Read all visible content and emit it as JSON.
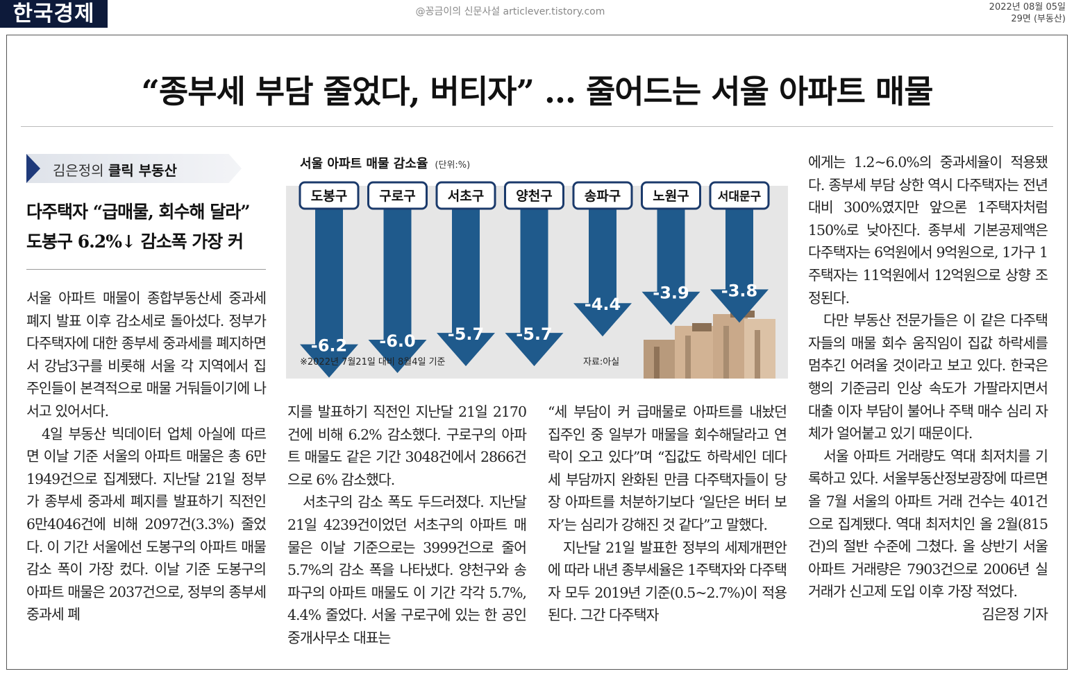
{
  "masthead": {
    "logo": "한국경제",
    "watermark": "@꽁금이의 신문사설 articlever.tistory.com",
    "date": "2022년 08월 05일",
    "page": "29면 (부동산)"
  },
  "headline": "“종부세 부담 줄었다, 버티자” … 줄어드는 서울 아파트 매물",
  "kicker": {
    "prefix": "김은정의 ",
    "bold": "클릭 부동산"
  },
  "subhead": {
    "line1": "다주택자 “급매물, 회수해 달라”",
    "line2": "도봉구 6.2%↓ 감소폭 가장 커"
  },
  "colors": {
    "bar": "#1f5a8c",
    "bar_dark": "#174a76",
    "panel": "#e6e6e6",
    "logo_bg": "#0d1a3a"
  },
  "chart_data": {
    "type": "bar",
    "title": "서울 아파트 매물 감소율",
    "unit": "(단위:%)",
    "categories": [
      "도봉구",
      "구로구",
      "서초구",
      "양천구",
      "송파구",
      "노원구",
      "서대문구"
    ],
    "values": [
      -6.2,
      -6.0,
      -5.7,
      -5.7,
      -4.4,
      -3.9,
      -3.8
    ],
    "value_labels": [
      "-6.2",
      "-6.0",
      "-5.7",
      "-5.7",
      "-4.4",
      "-3.9",
      "-3.8"
    ],
    "ylim": [
      -7,
      0
    ],
    "note": "※2022년 7월21일 대비 8월4일 기준",
    "source": "자료:아실"
  },
  "body": {
    "col1": [
      "서울 아파트 매물이 종합부동산세 중과세 폐지 발표 이후 감소세로 돌아섰다. 정부가 다주택자에 대한 종부세 중과세를 폐지하면서 강남3구를 비롯해 서울 각 지역에서 집주인들이 본격적으로 매물 거둬들이기에 나서고 있어서다.",
      "4일 부동산 빅데이터 업체 아실에 따르면 이날 기준 서울의 아파트 매물은 총 6만1949건으로 집계됐다. 지난달 21일 정부가 종부세 중과세 폐지를 발표하기 직전인 6만4046건에 비해 2097건(3.3%) 줄었다. 이 기간 서울에선 도봉구의 아파트 매물 감소 폭이 가장 컸다. 이날 기준 도봉구의 아파트 매물은 2037건으로, 정부의 종부세 중과세 폐"
    ],
    "col2": [
      "지를 발표하기 직전인 지난달 21일 2170건에 비해 6.2% 감소했다. 구로구의 아파트 매물도 같은 기간 3048건에서 2866건으로 6% 감소했다.",
      "서초구의 감소 폭도 두드러졌다. 지난달 21일 4239건이었던 서초구의 아파트 매물은 이날 기준으로는 3999건으로 줄어 5.7%의 감소 폭을 나타냈다. 양천구와 송파구의 아파트 매물도 이 기간 각각 5.7%, 4.4% 줄었다. 서울 구로구에 있는 한 공인중개사무소 대표는"
    ],
    "col3": [
      "“세 부담이 커 급매물로 아파트를 내놨던 집주인 중 일부가 매물을 회수해달라고 연락이 오고 있다”며 “집값도 하락세인 데다 세 부담까지 완화된 만큼 다주택자들이 당장 아파트를 처분하기보다 ‘일단은 버터 보자’는 심리가 강해진 것 같다”고 말했다.",
      "지난달 21일 발표한 정부의 세제개편안에 따라 내년 종부세율은 1주택자와 다주택자 모두 2019년 기준(0.5~2.7%)이 적용된다. 그간 다주택자"
    ],
    "col4": [
      "에게는 1.2~6.0%의 중과세율이 적용됐다. 종부세 부담 상한 역시 다주택자는 전년 대비 300%였지만 앞으론 1주택자처럼 150%로 낮아진다. 종부세 기본공제액은 다주택자는 6억원에서 9억원으로, 1가구 1주택자는 11억원에서 12억원으로 상향 조정된다.",
      "다만 부동산 전문가들은 이 같은 다주택자들의 매물 회수 움직임이 집값 하락세를 멈추긴 어려울 것이라고 보고 있다. 한국은행의 기준금리 인상 속도가 가팔라지면서 대출 이자 부담이 불어나 주택 매수 심리 자체가 얼어붙고 있기 때문이다.",
      "서울 아파트 거래량도 역대 최저치를 기록하고 있다. 서울부동산정보광장에 따르면 올 7월 서울의 아파트 거래 건수는 401건으로 집계됐다. 역대 최저치인 올 2월(815건)의 절반 수준에 그쳤다. 올 상반기 서울 아파트 거래량은 7903건으로 2006년 실거래가 신고제 도입 이후 가장 적었다."
    ],
    "byline": "김은정 기자"
  }
}
